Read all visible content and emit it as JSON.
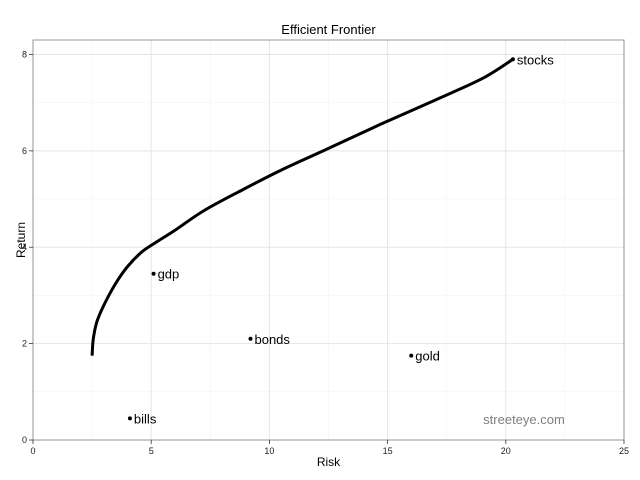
{
  "chart_data": {
    "type": "scatter",
    "title": "Efficient Frontier",
    "xlabel": "Risk",
    "ylabel": "Return",
    "xlim": [
      0,
      25
    ],
    "ylim": [
      0,
      8.3
    ],
    "xticks": [
      0,
      5,
      10,
      15,
      20,
      25
    ],
    "yticks": [
      0,
      2,
      4,
      6,
      8
    ],
    "grid": true,
    "watermark": "streeteye.com",
    "frontier": {
      "x": [
        2.5,
        2.55,
        2.7,
        3.0,
        3.5,
        4.0,
        4.6,
        5.2,
        6.0,
        7.2,
        8.7,
        10.5,
        12.5,
        14.7,
        17.0,
        19.0,
        20.3
      ],
      "y": [
        1.75,
        2.1,
        2.45,
        2.8,
        3.25,
        3.6,
        3.9,
        4.1,
        4.35,
        4.75,
        5.15,
        5.6,
        6.05,
        6.55,
        7.05,
        7.5,
        7.9
      ]
    },
    "points": [
      {
        "label": "stocks",
        "x": 20.3,
        "y": 7.9
      },
      {
        "label": "gdp",
        "x": 5.1,
        "y": 3.45
      },
      {
        "label": "bonds",
        "x": 9.2,
        "y": 2.1
      },
      {
        "label": "gold",
        "x": 16.0,
        "y": 1.75
      },
      {
        "label": "bills",
        "x": 4.1,
        "y": 0.45
      }
    ],
    "colors": {
      "line": "#000000",
      "grid_major": "#e5e5e5",
      "grid_minor": "#f2f2f2",
      "frame": "#7f7f7f",
      "watermark": "#7f7f7f"
    }
  }
}
